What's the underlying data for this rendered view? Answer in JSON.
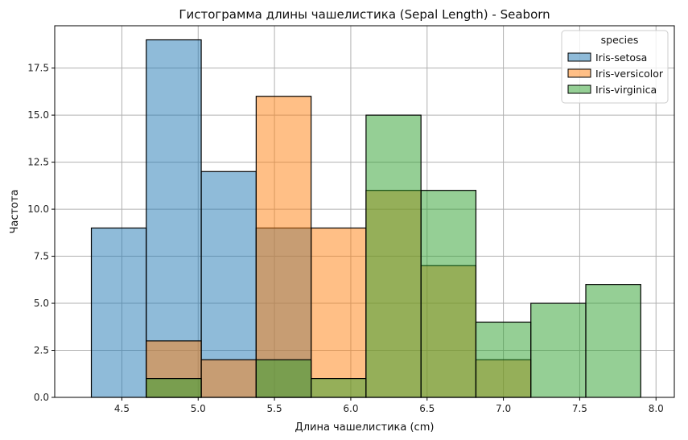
{
  "chart_data": {
    "type": "bar",
    "subtype": "histogram-overlay",
    "title": "Гистограмма длины чашелистика (Sepal Length) - Seaborn",
    "xlabel": "Длина чашелистика (cm)",
    "ylabel": "Частота",
    "xlim": [
      4.06,
      8.12
    ],
    "ylim": [
      0,
      19.75
    ],
    "x_ticks": [
      "4.5",
      "5.0",
      "5.5",
      "6.0",
      "6.5",
      "7.0",
      "7.5",
      "8.0"
    ],
    "y_ticks": [
      "0.0",
      "2.5",
      "5.0",
      "7.5",
      "10.0",
      "12.5",
      "15.0",
      "17.5"
    ],
    "grid": true,
    "bin_edges": [
      4.3,
      4.66,
      5.02,
      5.38,
      5.74,
      6.1,
      6.46,
      6.82,
      7.18,
      7.54,
      7.9
    ],
    "legend": {
      "title": "species",
      "position": "upper right"
    },
    "series": [
      {
        "name": "Iris-setosa",
        "color": "#1f77b4",
        "values": [
          9,
          19,
          12,
          9,
          0,
          0,
          0,
          0,
          0,
          0
        ]
      },
      {
        "name": "Iris-versicolor",
        "color": "#ff7f0e",
        "values": [
          0,
          3,
          2,
          16,
          9,
          11,
          7,
          2,
          0,
          0
        ]
      },
      {
        "name": "Iris-virginica",
        "color": "#2ca02c",
        "values": [
          0,
          1,
          0,
          2,
          1,
          15,
          11,
          4,
          5,
          6
        ]
      }
    ],
    "bar_alpha": 0.5
  }
}
